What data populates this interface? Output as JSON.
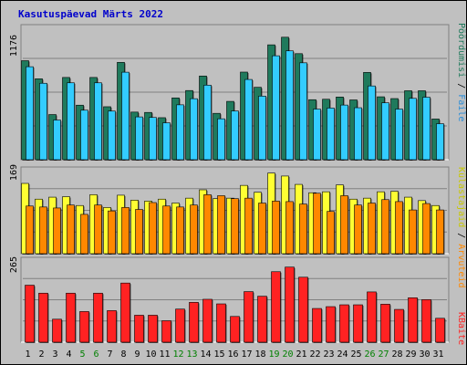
{
  "title": "Kasutuspäevad Märts 2022",
  "colors": {
    "background": "#c0c0c0",
    "title": "#0000cc",
    "pages": "#1f7a5c",
    "files": "#33ccff",
    "hits": "#ffff33",
    "visits": "#ff8800",
    "kbytes": "#ff2222",
    "weekend_label": "#008000",
    "weekday_label": "#000000"
  },
  "panels": {
    "top": {
      "max_label": "1176"
    },
    "middle": {
      "max_label": "169"
    },
    "bottom": {
      "max_label": "265"
    }
  },
  "right_labels": {
    "pages": "Pöördumisi",
    "files": "Faile",
    "hits": "Külastajaid",
    "visits": "Arvuteid",
    "kbytes": "KBaite",
    "separator": " / "
  },
  "chart_data": {
    "type": "bar",
    "title": "Kasutuspäevad Märts 2022",
    "categories": [
      "1",
      "2",
      "3",
      "4",
      "5",
      "6",
      "7",
      "8",
      "9",
      "10",
      "11",
      "12",
      "13",
      "14",
      "15",
      "16",
      "17",
      "18",
      "19",
      "20",
      "21",
      "22",
      "23",
      "24",
      "25",
      "26",
      "27",
      "28",
      "29",
      "30",
      "31"
    ],
    "weekend_days": [
      "5",
      "6",
      "12",
      "13",
      "19",
      "20",
      "26",
      "27"
    ],
    "top_panel": {
      "ylim": [
        0,
        1176
      ],
      "series": [
        {
          "name": "Pöördumisi",
          "values": [
            886,
            724,
            404,
            736,
            488,
            736,
            474,
            871,
            426,
            423,
            376,
            553,
            619,
            749,
            415,
            522,
            784,
            648,
            1028,
            1096,
            949,
            537,
            541,
            561,
            535,
            781,
            563,
            547,
            617,
            617,
            364
          ]
        },
        {
          "name": "Faile",
          "values": [
            832,
            684,
            355,
            688,
            443,
            688,
            435,
            783,
            383,
            378,
            330,
            491,
            546,
            667,
            366,
            436,
            718,
            569,
            930,
            974,
            867,
            453,
            462,
            489,
            465,
            660,
            509,
            453,
            549,
            559,
            322
          ]
        }
      ]
    },
    "middle_panel": {
      "ylim": [
        0,
        169
      ],
      "series": [
        {
          "name": "Külastajaid",
          "values": [
            143,
            111,
            115,
            116,
            98,
            120,
            94,
            119,
            109,
            107,
            111,
            103,
            113,
            130,
            112,
            113,
            139,
            125,
            164,
            158,
            141,
            124,
            126,
            140,
            111,
            113,
            126,
            127,
            115,
            108,
            98
          ]
        },
        {
          "name": "Arvuteid",
          "values": [
            97,
            95,
            93,
            99,
            80,
            99,
            87,
            94,
            90,
            104,
            97,
            95,
            99,
            120,
            118,
            112,
            113,
            103,
            107,
            106,
            101,
            123,
            86,
            118,
            99,
            103,
            110,
            106,
            89,
            102,
            89
          ]
        }
      ]
    },
    "bottom_panel": {
      "ylim": [
        0,
        265
      ],
      "series": [
        {
          "name": "KBaite",
          "values": [
            186,
            160,
            75,
            160,
            100,
            160,
            103,
            193,
            88,
            88,
            70,
            108,
            130,
            140,
            125,
            84,
            165,
            150,
            230,
            245,
            212,
            110,
            116,
            122,
            122,
            164,
            124,
            107,
            145,
            139,
            78
          ]
        }
      ]
    }
  }
}
